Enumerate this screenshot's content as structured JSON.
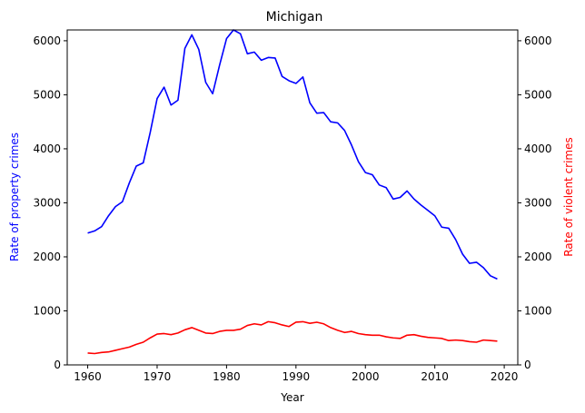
{
  "chart_data": {
    "type": "line",
    "title": "Michigan",
    "xlabel": "Year",
    "ylabel_left": "Rate of property crimes",
    "ylabel_right": "Rate of violent crimes",
    "xlim": [
      1957.05,
      2021.95
    ],
    "ylim_left": [
      0,
      6200
    ],
    "ylim_right": [
      0,
      6200
    ],
    "x_ticks": [
      1960,
      1970,
      1980,
      1990,
      2000,
      2010,
      2020
    ],
    "y_ticks": [
      0,
      1000,
      2000,
      3000,
      4000,
      5000,
      6000
    ],
    "grid": false,
    "x": [
      1960,
      1961,
      1962,
      1963,
      1964,
      1965,
      1966,
      1967,
      1968,
      1969,
      1970,
      1971,
      1972,
      1973,
      1974,
      1975,
      1976,
      1977,
      1978,
      1979,
      1980,
      1981,
      1982,
      1983,
      1984,
      1985,
      1986,
      1987,
      1988,
      1989,
      1990,
      1991,
      1992,
      1993,
      1994,
      1995,
      1996,
      1997,
      1998,
      1999,
      2000,
      2001,
      2002,
      2003,
      2004,
      2005,
      2006,
      2007,
      2008,
      2009,
      2010,
      2011,
      2012,
      2013,
      2014,
      2015,
      2016,
      2017,
      2018,
      2019
    ],
    "series": [
      {
        "axis": "left",
        "color": "#0000ff",
        "values": [
          2440,
          2480,
          2560,
          2760,
          2930,
          3020,
          3370,
          3680,
          3740,
          4300,
          4930,
          5140,
          4810,
          4900,
          5860,
          6110,
          5840,
          5230,
          5020,
          5550,
          6040,
          6200,
          6130,
          5760,
          5790,
          5640,
          5690,
          5680,
          5340,
          5260,
          5210,
          5330,
          4850,
          4660,
          4670,
          4500,
          4480,
          4340,
          4070,
          3760,
          3560,
          3520,
          3330,
          3280,
          3070,
          3100,
          3220,
          3070,
          2960,
          2860,
          2760,
          2550,
          2530,
          2320,
          2050,
          1880,
          1900,
          1800,
          1650,
          1590
        ]
      },
      {
        "axis": "right",
        "color": "#ff0000",
        "values": [
          220,
          210,
          230,
          240,
          270,
          300,
          330,
          380,
          420,
          500,
          570,
          580,
          560,
          590,
          650,
          690,
          640,
          590,
          580,
          620,
          640,
          640,
          660,
          730,
          760,
          740,
          800,
          780,
          740,
          710,
          790,
          800,
          770,
          790,
          760,
          690,
          640,
          600,
          620,
          580,
          560,
          550,
          550,
          520,
          500,
          490,
          550,
          560,
          530,
          510,
          500,
          490,
          450,
          460,
          450,
          430,
          420,
          460,
          450,
          440
        ]
      }
    ]
  }
}
